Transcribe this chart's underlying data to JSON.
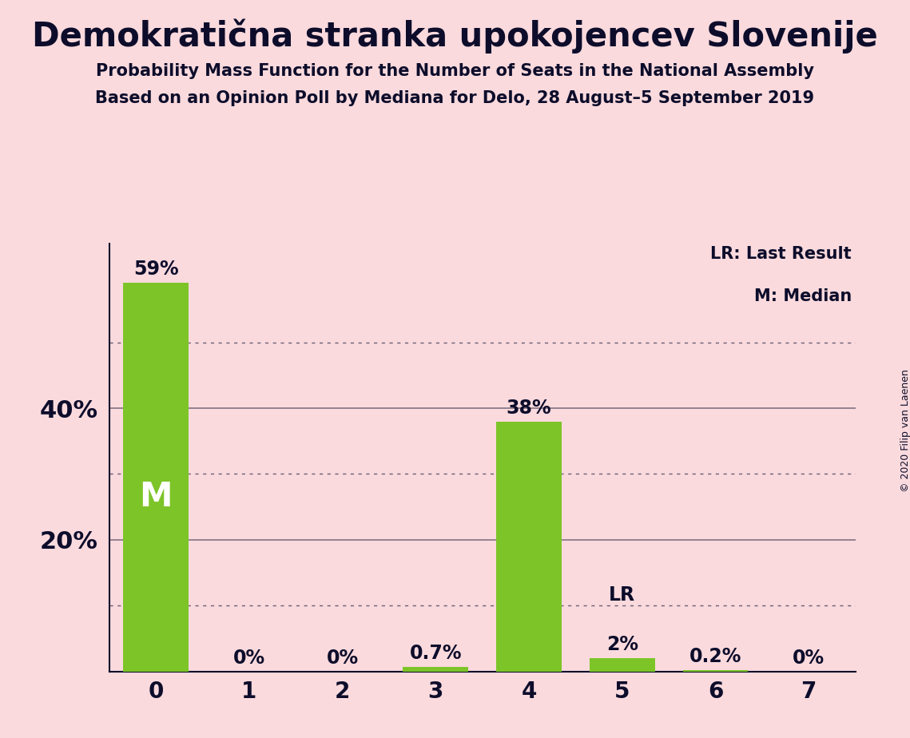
{
  "title": "Demokratična stranka upokojencev Slovenije",
  "subtitle1": "Probability Mass Function for the Number of Seats in the National Assembly",
  "subtitle2": "Based on an Opinion Poll by Mediana for Delo, 28 August–5 September 2019",
  "copyright": "© 2020 Filip van Laenen",
  "categories": [
    0,
    1,
    2,
    3,
    4,
    5,
    6,
    7
  ],
  "values": [
    0.59,
    0.0,
    0.0,
    0.007,
    0.38,
    0.02,
    0.002,
    0.0
  ],
  "labels": [
    "59%",
    "0%",
    "0%",
    "0.7%",
    "38%",
    "2%",
    "0.2%",
    "0%"
  ],
  "bar_color": "#7DC429",
  "background_color": "#FADADD",
  "text_color": "#0D0D2B",
  "median_bar": 0,
  "lr_bar": 5,
  "legend_lr": "LR: Last Result",
  "legend_m": "M: Median",
  "ytick_positions": [
    0.1,
    0.2,
    0.3,
    0.4,
    0.5
  ],
  "ytick_labels_show": [
    0.2,
    0.4
  ],
  "ylim": [
    0,
    0.65
  ],
  "grid_solid": [
    0.2,
    0.4
  ],
  "grid_dotted": [
    0.1,
    0.3,
    0.5
  ]
}
